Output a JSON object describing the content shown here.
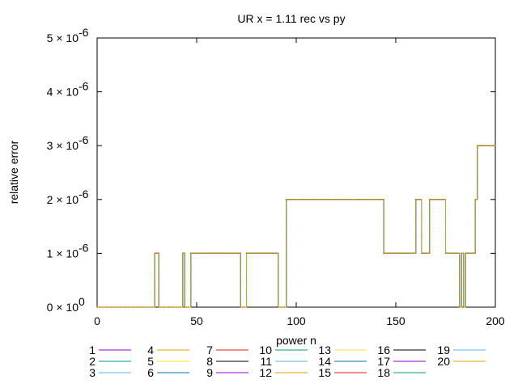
{
  "chart_data": {
    "type": "line",
    "title": "UR x = 1.11 rec vs py",
    "xlabel": "power n",
    "ylabel": "relative error",
    "xlim": [
      0,
      200
    ],
    "ylim": [
      0,
      5e-06
    ],
    "grid": false,
    "legend_placement": "bottom",
    "x_ticks": [
      {
        "value": 0,
        "label": "0"
      },
      {
        "value": 50,
        "label": "50"
      },
      {
        "value": 100,
        "label": "100"
      },
      {
        "value": 150,
        "label": "150"
      },
      {
        "value": 200,
        "label": "200"
      }
    ],
    "y_ticks": [
      {
        "value": 0,
        "mant": "0 × 10",
        "exp": "0"
      },
      {
        "value": 1e-06,
        "mant": "1 × 10",
        "exp": "-6"
      },
      {
        "value": 2e-06,
        "mant": "2 × 10",
        "exp": "-6"
      },
      {
        "value": 3e-06,
        "mant": "3 × 10",
        "exp": "-6"
      },
      {
        "value": 4e-06,
        "mant": "4 × 10",
        "exp": "-6"
      },
      {
        "value": 5e-06,
        "mant": "5 × 10",
        "exp": "-6"
      }
    ],
    "series": [
      {
        "name": "1",
        "color": "#9400d3"
      },
      {
        "name": "2",
        "color": "#009e73"
      },
      {
        "name": "3",
        "color": "#56b4e9"
      },
      {
        "name": "4",
        "color": "#e69f00"
      },
      {
        "name": "5",
        "color": "#f0e442"
      },
      {
        "name": "6",
        "color": "#0072b2"
      },
      {
        "name": "7",
        "color": "#e51e10"
      },
      {
        "name": "8",
        "color": "#000000"
      },
      {
        "name": "9",
        "color": "#9400d3"
      },
      {
        "name": "10",
        "color": "#009e73"
      },
      {
        "name": "11",
        "color": "#56b4e9"
      },
      {
        "name": "12",
        "color": "#e69f00"
      },
      {
        "name": "13",
        "color": "#f0e442"
      },
      {
        "name": "14",
        "color": "#0072b2"
      },
      {
        "name": "15",
        "color": "#e51e10"
      },
      {
        "name": "16",
        "color": "#000000"
      },
      {
        "name": "17",
        "color": "#9400d3"
      },
      {
        "name": "18",
        "color": "#009e73"
      },
      {
        "name": "19",
        "color": "#56b4e9"
      },
      {
        "name": "20",
        "color": "#e69f00"
      }
    ],
    "step_data": {
      "description_of_values": "relative error per power n (all series overlap)",
      "points": [
        [
          0,
          0
        ],
        [
          28,
          0
        ],
        [
          29,
          1e-06
        ],
        [
          30,
          1e-06
        ],
        [
          31,
          0
        ],
        [
          42,
          0
        ],
        [
          43,
          1e-06
        ],
        [
          44,
          0
        ],
        [
          46,
          0
        ],
        [
          47,
          1e-06
        ],
        [
          71,
          1e-06
        ],
        [
          72,
          0
        ],
        [
          74,
          0
        ],
        [
          75,
          1e-06
        ],
        [
          90,
          1e-06
        ],
        [
          91,
          0
        ],
        [
          94,
          0
        ],
        [
          95,
          2e-06
        ],
        [
          143,
          2e-06
        ],
        [
          144,
          1e-06
        ],
        [
          159,
          1e-06
        ],
        [
          160,
          2e-06
        ],
        [
          162,
          2e-06
        ],
        [
          163,
          1e-06
        ],
        [
          166,
          1e-06
        ],
        [
          167,
          2e-06
        ],
        [
          174,
          2e-06
        ],
        [
          175,
          1e-06
        ],
        [
          181,
          1e-06
        ],
        [
          182,
          0
        ],
        [
          183,
          1e-06
        ],
        [
          184,
          0
        ],
        [
          185,
          1e-06
        ],
        [
          189,
          1e-06
        ],
        [
          190,
          2e-06
        ],
        [
          191,
          3e-06
        ],
        [
          200,
          3e-06
        ]
      ]
    }
  }
}
